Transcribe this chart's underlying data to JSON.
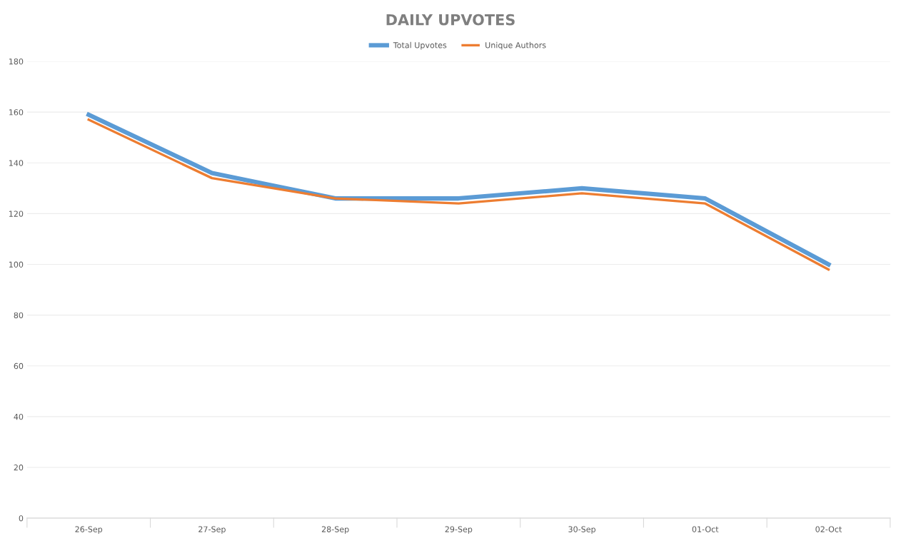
{
  "chart_data": {
    "type": "line",
    "title": "DAILY UPVOTES",
    "categories": [
      "26-Sep",
      "27-Sep",
      "28-Sep",
      "29-Sep",
      "30-Sep",
      "01-Oct",
      "02-Oct"
    ],
    "series": [
      {
        "name": "Total Upvotes",
        "color": "#5b9bd5",
        "values": [
          159,
          136,
          126,
          126,
          130,
          126,
          100
        ]
      },
      {
        "name": "Unique Authors",
        "color": "#ed7d31",
        "values": [
          157,
          134,
          126,
          124,
          128,
          124,
          98
        ]
      }
    ],
    "ylim": [
      0,
      180
    ],
    "yticks": [
      0,
      20,
      40,
      60,
      80,
      100,
      120,
      140,
      160,
      180
    ],
    "grid": "y",
    "legend": "top",
    "marker": "none",
    "line_style": "solid"
  }
}
